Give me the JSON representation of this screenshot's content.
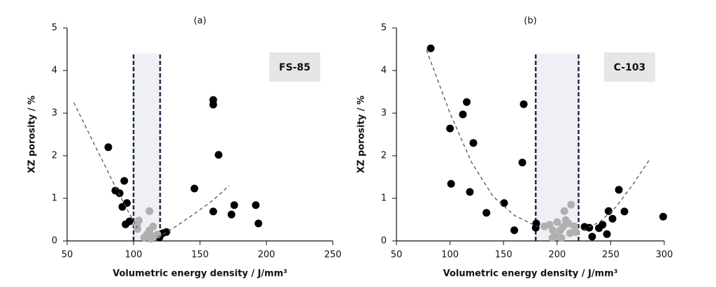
{
  "chart_data": [
    {
      "type": "scatter",
      "title": "(a)",
      "xlabel": "Volumetric energy density / J/mm³",
      "ylabel": "XZ porosity / %",
      "annotation": "FS-85",
      "xlim": [
        50,
        250
      ],
      "xticks": [
        50,
        100,
        150,
        200,
        250
      ],
      "ylim": [
        0,
        5
      ],
      "yticks": [
        0,
        1,
        2,
        3,
        4,
        5
      ],
      "band": {
        "xlim": [
          100,
          120
        ],
        "ylim": [
          0,
          4.4
        ],
        "color": "#eef0f5",
        "edge_color": "#1f2a44"
      },
      "series": [
        {
          "color": "#000000",
          "x": [
            81,
            86.3,
            89.5,
            93,
            91.6,
            95,
            94,
            97,
            119.5,
            122,
            124.7,
            145.8,
            160,
            160,
            164,
            160,
            175.8,
            173.7,
            192,
            194
          ],
          "values": [
            2.2,
            1.18,
            1.12,
            1.41,
            0.8,
            0.89,
            0.39,
            0.46,
            0.08,
            0.18,
            0.21,
            1.23,
            3.31,
            3.2,
            2.02,
            0.69,
            0.84,
            0.62,
            0.84,
            0.41
          ]
        },
        {
          "color": "#b0b0b0",
          "x": [
            102.6,
            104,
            103,
            112,
            108,
            110,
            112,
            114.7,
            113,
            115,
            118
          ],
          "values": [
            0.38,
            0.48,
            0.28,
            0.7,
            0.08,
            0.15,
            0.25,
            0.34,
            0.05,
            0.11,
            0.15
          ]
        },
        {
          "color": "#555555",
          "line": "dashed",
          "x": [
            55,
            70,
            85,
            95,
            103
          ],
          "values": [
            3.25,
            2.3,
            1.35,
            0.75,
            0.3
          ]
        },
        {
          "color": "#555555",
          "line": "dashed",
          "x": [
            118,
            130,
            145,
            160,
            172
          ],
          "values": [
            0.08,
            0.3,
            0.62,
            0.96,
            1.3
          ]
        }
      ]
    },
    {
      "type": "scatter",
      "title": "(b)",
      "xlabel": "Volumetric energy density / J/mm³",
      "ylabel": "XZ porosity / %",
      "annotation": "C-103",
      "xlim": [
        50,
        300
      ],
      "xticks": [
        50,
        100,
        150,
        200,
        250,
        300
      ],
      "ylim": [
        0,
        5
      ],
      "yticks": [
        0,
        1,
        2,
        3,
        4,
        5
      ],
      "band": {
        "xlim": [
          180,
          220
        ],
        "ylim": [
          0,
          4.4
        ],
        "color": "#eef0f5",
        "edge_color": "#1f2a44"
      },
      "series": [
        {
          "color": "#000000",
          "x": [
            82,
            100,
            101,
            112,
            115.6,
            121.8,
            118.5,
            134,
            150.5,
            160,
            167.5,
            168.8,
            180.5,
            180,
            225.6,
            230,
            232.7,
            239,
            242.4,
            248,
            251.7,
            246.5,
            257.6,
            262.8,
            299
          ],
          "values": [
            4.52,
            2.64,
            1.34,
            2.97,
            3.26,
            2.3,
            1.15,
            0.66,
            0.89,
            0.25,
            1.84,
            3.21,
            0.41,
            0.31,
            0.33,
            0.31,
            0.1,
            0.3,
            0.38,
            0.7,
            0.52,
            0.16,
            1.2,
            0.69,
            0.57
          ]
        },
        {
          "color": "#b0b0b0",
          "x": [
            188,
            193,
            196,
            199,
            200,
            203,
            205.5,
            206.7,
            208,
            210.6,
            213,
            216,
            212,
            217,
            195.5,
            204
          ],
          "values": [
            0.34,
            0.38,
            0.25,
            0.11,
            0.44,
            0.25,
            0.33,
            0.7,
            0.49,
            0.41,
            0.85,
            0.34,
            0.18,
            0.21,
            0.07,
            0.07
          ]
        },
        {
          "color": "#555555",
          "line": "dashed",
          "x": [
            78,
            100,
            120,
            140,
            160,
            182
          ],
          "values": [
            4.48,
            3.0,
            1.85,
            1.05,
            0.6,
            0.33
          ]
        },
        {
          "color": "#555555",
          "line": "dashed",
          "x": [
            224,
            240,
            255,
            270,
            286
          ],
          "values": [
            0.25,
            0.45,
            0.8,
            1.3,
            1.9
          ]
        }
      ]
    }
  ]
}
